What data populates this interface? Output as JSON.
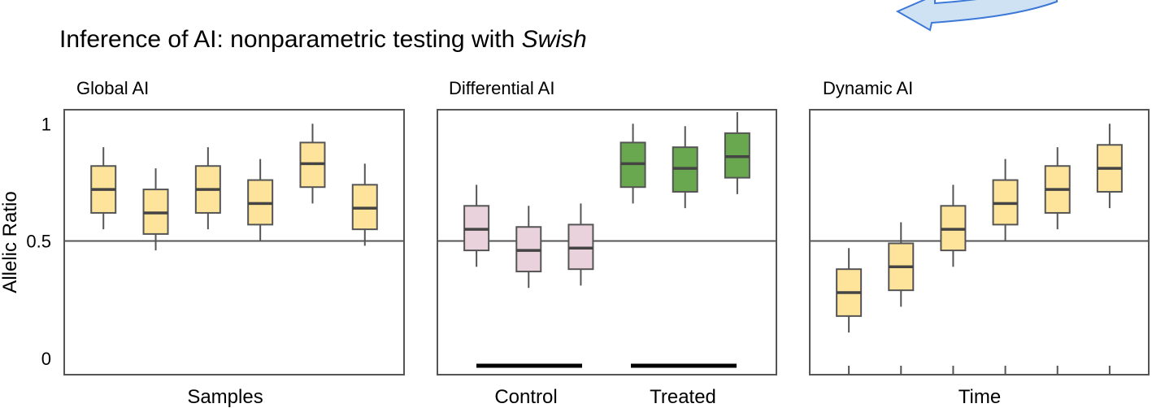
{
  "title": {
    "main": "Inference of AI: nonparametric testing with ",
    "italic": "Swish"
  },
  "y_axis": {
    "label": "Allelic Ratio",
    "ticks": [
      {
        "value": 1,
        "label": "1"
      },
      {
        "value": 0.5,
        "label": "0.5"
      },
      {
        "value": 0,
        "label": "0"
      }
    ]
  },
  "colors": {
    "yellow_fill": "#fde49a",
    "pink_fill": "#ead2dc",
    "green_fill": "#6aa84f",
    "box_stroke": "#555555",
    "median": "#444444",
    "frame": "#555555",
    "arrow_fill": "#cfe2f3",
    "arrow_stroke": "#3c78d8"
  },
  "chart_data": [
    {
      "type": "box",
      "title": "Global AI",
      "xlabel": "Samples",
      "ylabel": "Allelic Ratio",
      "ylim": [
        -0.07,
        1.06
      ],
      "reference_line": 0.5,
      "boxes": [
        {
          "whisker_low": 0.55,
          "q1": 0.62,
          "median": 0.72,
          "q3": 0.82,
          "whisker_high": 0.9,
          "color": "yellow"
        },
        {
          "whisker_low": 0.46,
          "q1": 0.53,
          "median": 0.62,
          "q3": 0.72,
          "whisker_high": 0.81,
          "color": "yellow"
        },
        {
          "whisker_low": 0.55,
          "q1": 0.62,
          "median": 0.72,
          "q3": 0.82,
          "whisker_high": 0.9,
          "color": "yellow"
        },
        {
          "whisker_low": 0.5,
          "q1": 0.57,
          "median": 0.66,
          "q3": 0.76,
          "whisker_high": 0.85,
          "color": "yellow"
        },
        {
          "whisker_low": 0.66,
          "q1": 0.73,
          "median": 0.83,
          "q3": 0.92,
          "whisker_high": 1.0,
          "color": "yellow"
        },
        {
          "whisker_low": 0.48,
          "q1": 0.55,
          "median": 0.64,
          "q3": 0.74,
          "whisker_high": 0.83,
          "color": "yellow"
        }
      ]
    },
    {
      "type": "box",
      "title": "Differential AI",
      "xlabel": "",
      "groups": [
        {
          "label": "Control",
          "box_indices": [
            0,
            1,
            2
          ]
        },
        {
          "label": "Treated",
          "box_indices": [
            3,
            4,
            5
          ]
        }
      ],
      "ylim": [
        -0.07,
        1.06
      ],
      "reference_line": 0.5,
      "boxes": [
        {
          "whisker_low": 0.39,
          "q1": 0.46,
          "median": 0.55,
          "q3": 0.65,
          "whisker_high": 0.74,
          "color": "pink"
        },
        {
          "whisker_low": 0.3,
          "q1": 0.37,
          "median": 0.46,
          "q3": 0.56,
          "whisker_high": 0.65,
          "color": "pink"
        },
        {
          "whisker_low": 0.31,
          "q1": 0.38,
          "median": 0.47,
          "q3": 0.57,
          "whisker_high": 0.66,
          "color": "pink"
        },
        {
          "whisker_low": 0.66,
          "q1": 0.73,
          "median": 0.83,
          "q3": 0.92,
          "whisker_high": 1.0,
          "color": "green"
        },
        {
          "whisker_low": 0.64,
          "q1": 0.71,
          "median": 0.81,
          "q3": 0.9,
          "whisker_high": 0.99,
          "color": "green"
        },
        {
          "whisker_low": 0.7,
          "q1": 0.77,
          "median": 0.86,
          "q3": 0.96,
          "whisker_high": 1.05,
          "color": "green"
        }
      ]
    },
    {
      "type": "box",
      "title": "Dynamic AI",
      "xlabel": "Time",
      "ylim": [
        -0.07,
        1.06
      ],
      "reference_line": 0.5,
      "x_ticks_unlabeled": true,
      "boxes": [
        {
          "whisker_low": 0.11,
          "q1": 0.18,
          "median": 0.28,
          "q3": 0.38,
          "whisker_high": 0.47,
          "color": "yellow"
        },
        {
          "whisker_low": 0.22,
          "q1": 0.29,
          "median": 0.39,
          "q3": 0.49,
          "whisker_high": 0.58,
          "color": "yellow"
        },
        {
          "whisker_low": 0.39,
          "q1": 0.46,
          "median": 0.55,
          "q3": 0.65,
          "whisker_high": 0.74,
          "color": "yellow"
        },
        {
          "whisker_low": 0.5,
          "q1": 0.57,
          "median": 0.66,
          "q3": 0.76,
          "whisker_high": 0.85,
          "color": "yellow"
        },
        {
          "whisker_low": 0.55,
          "q1": 0.62,
          "median": 0.72,
          "q3": 0.82,
          "whisker_high": 0.9,
          "color": "yellow"
        },
        {
          "whisker_low": 0.64,
          "q1": 0.71,
          "median": 0.81,
          "q3": 0.91,
          "whisker_high": 1.0,
          "color": "yellow"
        }
      ]
    }
  ]
}
